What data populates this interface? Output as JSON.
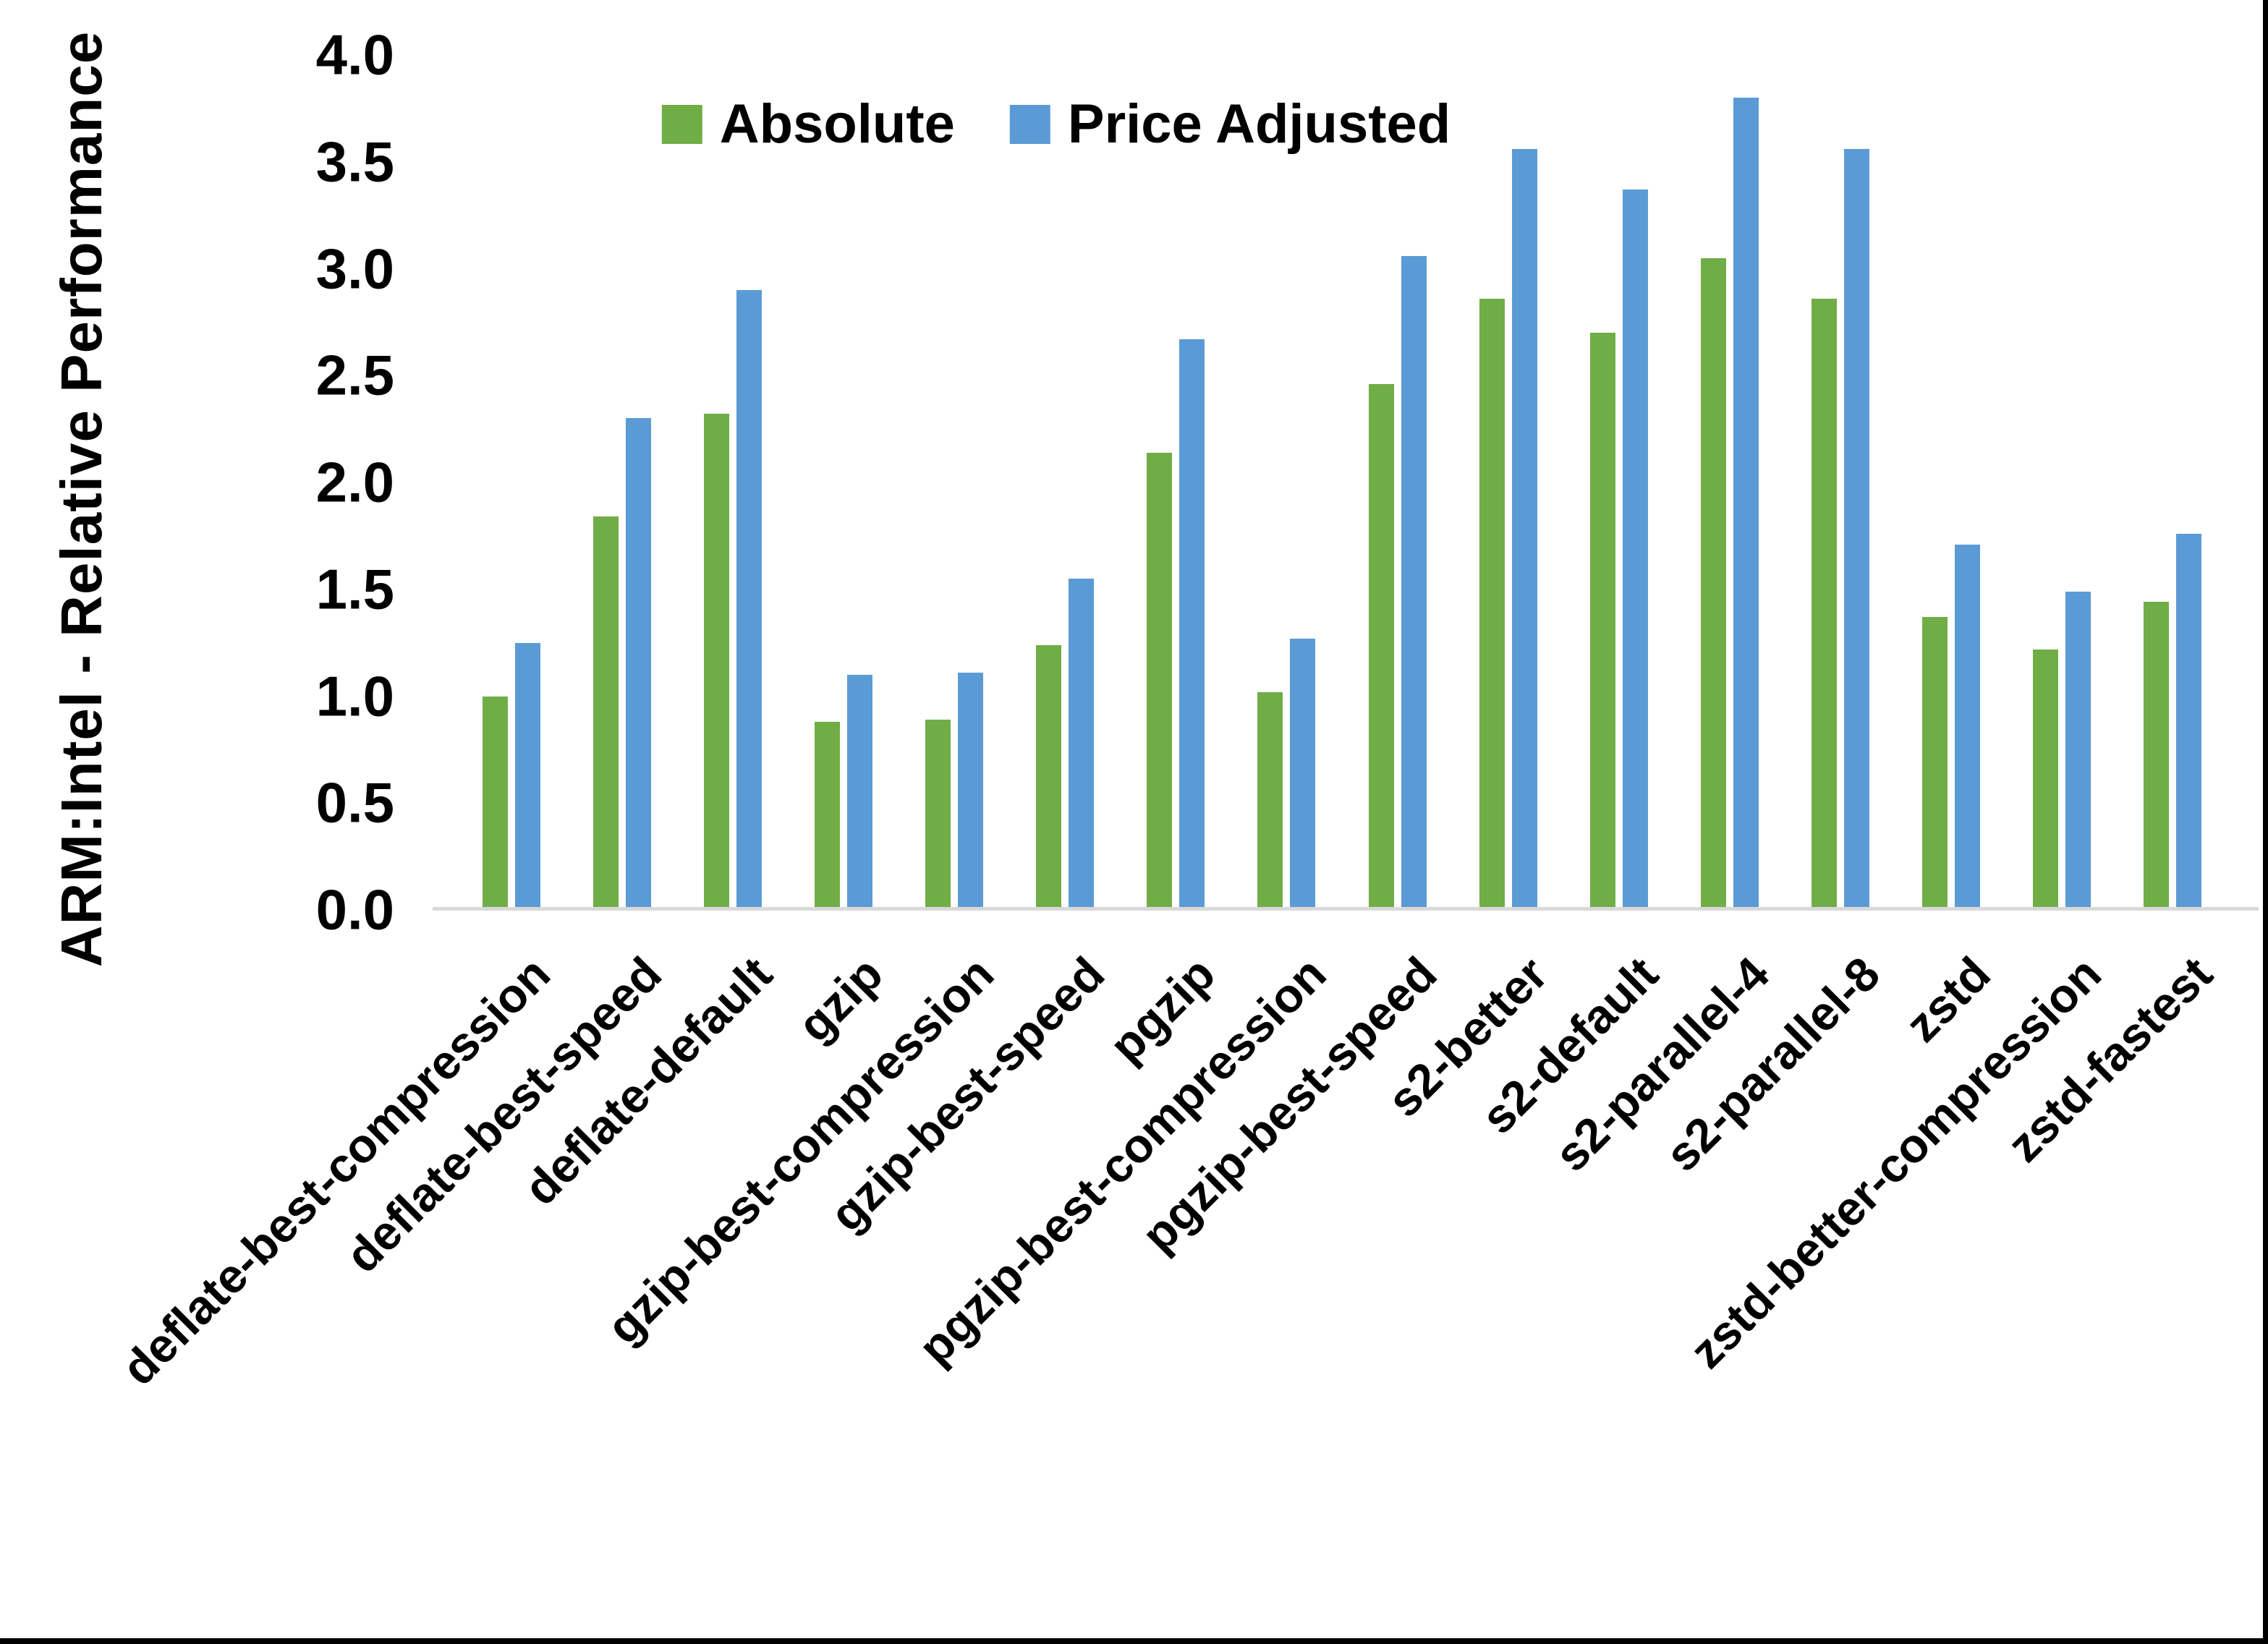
{
  "chart_data": {
    "type": "bar",
    "title": "",
    "xlabel": "",
    "ylabel": "ARM:Intel - Relative Performance",
    "ylim": [
      0.0,
      4.0
    ],
    "ytick_step": 0.5,
    "yticks": [
      "4.0",
      "3.5",
      "3.0",
      "2.5",
      "2.0",
      "1.5",
      "1.0",
      "0.5",
      "0.0"
    ],
    "grid": false,
    "legend_position": "top-center",
    "categories": [
      "deflate-best-compression",
      "deflate-best-speed",
      "deflate-default",
      "gzip",
      "gzip-best-compression",
      "gzip-best-speed",
      "pgzip",
      "pgzip-best-compression",
      "pgzip-best-speed",
      "s2-better",
      "s2-default",
      "s2-parallel-4",
      "s2-parallel-8",
      "zstd",
      "zstd-better-compression",
      "zstd-fastest"
    ],
    "series": [
      {
        "name": "Absolute",
        "color": "#70AD47",
        "values": [
          1.0,
          1.84,
          2.32,
          0.88,
          0.89,
          1.24,
          2.14,
          1.02,
          2.46,
          2.86,
          2.7,
          3.05,
          2.86,
          1.37,
          1.22,
          1.44
        ]
      },
      {
        "name": "Price Adjusted",
        "color": "#5B9BD5",
        "values": [
          1.25,
          2.3,
          2.9,
          1.1,
          1.11,
          1.55,
          2.67,
          1.27,
          3.06,
          3.56,
          3.37,
          3.8,
          3.56,
          1.71,
          1.49,
          1.76
        ]
      }
    ],
    "colors": {
      "background": "#FFFFFF",
      "axis_line": "#D9D9D9",
      "text": "#000000",
      "frame_border": "#000000"
    }
  }
}
